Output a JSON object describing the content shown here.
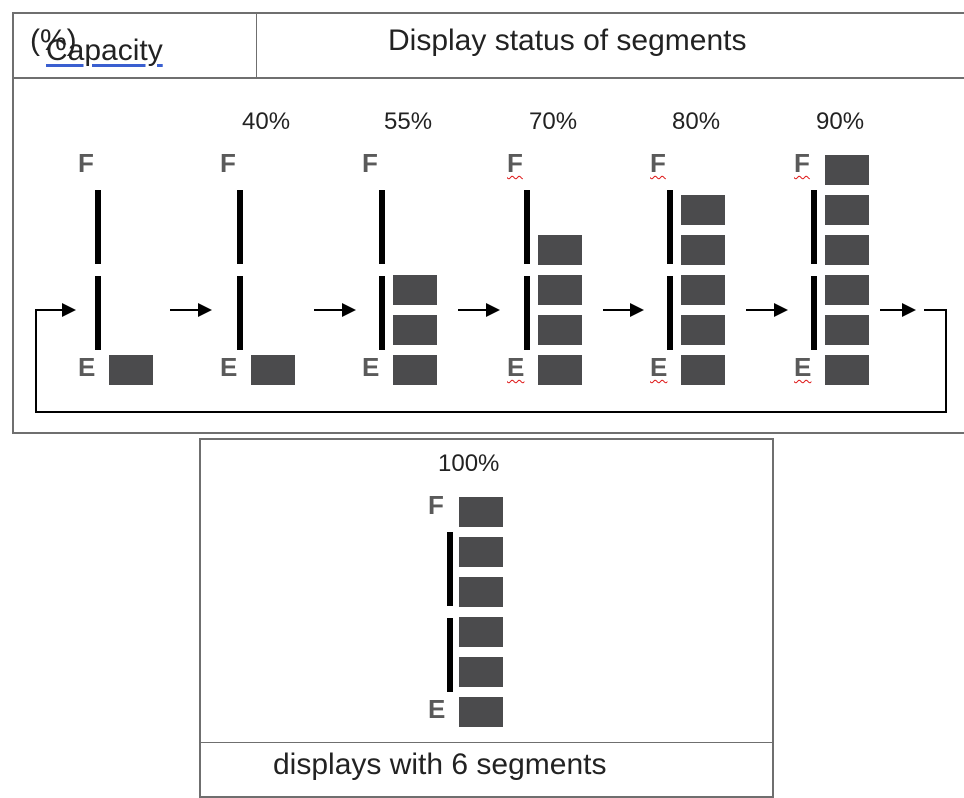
{
  "header": {
    "capacity_label": "Capacity",
    "capacity_suffix": "(%)",
    "status_label": "Display status of segments"
  },
  "indicator": {
    "full_label": "F",
    "empty_label": "E",
    "total_segments": 6
  },
  "states": [
    {
      "percent": "",
      "filled_segments": 1
    },
    {
      "percent": "40%",
      "filled_segments": 1
    },
    {
      "percent": "55%",
      "filled_segments": 3
    },
    {
      "percent": "70%",
      "filled_segments": 4
    },
    {
      "percent": "80%",
      "filled_segments": 5
    },
    {
      "percent": "90%",
      "filled_segments": 6
    }
  ],
  "full_state": {
    "percent": "100%",
    "filled_segments": 6
  },
  "caption": "displays with 6 segments",
  "colors": {
    "segment": "#4b4b4d",
    "bar": "#000000",
    "letter": "#5a5a5a",
    "border": "#6f6f6f"
  }
}
